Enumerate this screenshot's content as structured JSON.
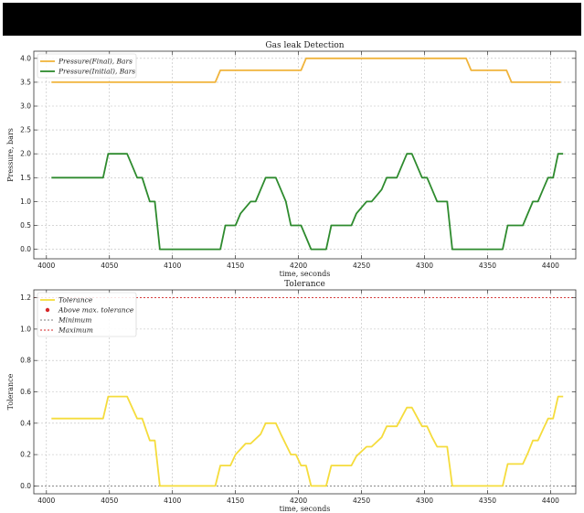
{
  "chart_data": [
    {
      "type": "line",
      "title": "Gas leak Detection",
      "xlabel": "time, seconds",
      "ylabel": "Pressure, bars",
      "xlim": [
        3990,
        4420
      ],
      "ylim": [
        -0.2,
        4.15
      ],
      "xticks": [
        4000,
        4050,
        4100,
        4150,
        4200,
        4250,
        4300,
        4350,
        4400
      ],
      "yticks": [
        0.0,
        0.5,
        1.0,
        1.5,
        2.0,
        2.5,
        3.0,
        3.5,
        4.0
      ],
      "xtick_labels": [
        "4000",
        "4050",
        "4100",
        "4150",
        "4200",
        "4250",
        "4300",
        "4350",
        "4400"
      ],
      "ytick_labels": [
        "0.0",
        "0.5",
        "1.0",
        "1.5",
        "2.0",
        "2.5",
        "3.0",
        "3.5",
        "4.0"
      ],
      "grid": true,
      "legend_position": "top-left",
      "series": [
        {
          "name": "Pressure(Final), Bars",
          "color": "#f0b43c",
          "x": [
            4004,
            4134,
            4138,
            4202,
            4206,
            4333,
            4337,
            4365,
            4369,
            4408
          ],
          "y": [
            3.5,
            3.5,
            3.75,
            3.75,
            4.0,
            4.0,
            3.75,
            3.75,
            3.5,
            3.5
          ]
        },
        {
          "name": "Pressure(Initial), Bars",
          "color": "#2e8b2e",
          "x": [
            4004,
            4045,
            4049,
            4064,
            4068,
            4072,
            4076,
            4079,
            4082,
            4086,
            4090,
            4138,
            4142,
            4150,
            4154,
            4162,
            4166,
            4170,
            4174,
            4182,
            4186,
            4190,
            4194,
            4202,
            4206,
            4210,
            4214,
            4222,
            4226,
            4242,
            4246,
            4254,
            4258,
            4266,
            4270,
            4278,
            4282,
            4286,
            4290,
            4298,
            4302,
            4306,
            4310,
            4318,
            4322,
            4362,
            4366,
            4378,
            4382,
            4386,
            4390,
            4394,
            4398,
            4402,
            4406,
            4410
          ],
          "y": [
            1.5,
            1.5,
            2.0,
            2.0,
            1.75,
            1.5,
            1.5,
            1.25,
            1.0,
            1.0,
            0.0,
            0.0,
            0.5,
            0.5,
            0.75,
            1.0,
            1.0,
            1.25,
            1.5,
            1.5,
            1.25,
            1.0,
            0.5,
            0.5,
            0.25,
            0.0,
            0.0,
            0.0,
            0.5,
            0.5,
            0.75,
            1.0,
            1.0,
            1.25,
            1.5,
            1.5,
            1.75,
            2.0,
            2.0,
            1.5,
            1.5,
            1.25,
            1.0,
            1.0,
            0.0,
            0.0,
            0.5,
            0.5,
            0.75,
            1.0,
            1.0,
            1.25,
            1.5,
            1.5,
            2.0,
            2.0
          ]
        }
      ]
    },
    {
      "type": "line",
      "title": "Tolerance",
      "xlabel": "time, seconds",
      "ylabel": "Tolerance",
      "xlim": [
        3990,
        4420
      ],
      "ylim": [
        -0.05,
        1.25
      ],
      "xticks": [
        4000,
        4050,
        4100,
        4150,
        4200,
        4250,
        4300,
        4350,
        4400
      ],
      "yticks": [
        0.0,
        0.2,
        0.4,
        0.6,
        0.8,
        1.0,
        1.2
      ],
      "xtick_labels": [
        "4000",
        "4050",
        "4100",
        "4150",
        "4200",
        "4250",
        "4300",
        "4350",
        "4400"
      ],
      "ytick_labels": [
        "0.0",
        "0.2",
        "0.4",
        "0.6",
        "0.8",
        "1.0",
        "1.2"
      ],
      "grid": true,
      "legend_position": "top-left",
      "series": [
        {
          "name": "Tolerance",
          "color": "#f5dc3c",
          "x": [
            4004,
            4045,
            4049,
            4064,
            4068,
            4072,
            4076,
            4079,
            4082,
            4086,
            4090,
            4134,
            4138,
            4146,
            4150,
            4158,
            4162,
            4170,
            4174,
            4182,
            4186,
            4194,
            4198,
            4202,
            4206,
            4210,
            4214,
            4222,
            4226,
            4242,
            4246,
            4254,
            4258,
            4266,
            4270,
            4278,
            4282,
            4286,
            4290,
            4298,
            4302,
            4306,
            4310,
            4318,
            4322,
            4362,
            4366,
            4378,
            4382,
            4386,
            4390,
            4394,
            4398,
            4402,
            4406,
            4410
          ],
          "y": [
            0.43,
            0.43,
            0.57,
            0.57,
            0.5,
            0.43,
            0.43,
            0.36,
            0.29,
            0.29,
            0.0,
            0.0,
            0.13,
            0.13,
            0.2,
            0.27,
            0.27,
            0.33,
            0.4,
            0.4,
            0.33,
            0.2,
            0.2,
            0.13,
            0.13,
            0.0,
            0.0,
            0.0,
            0.13,
            0.13,
            0.19,
            0.25,
            0.25,
            0.31,
            0.38,
            0.38,
            0.44,
            0.5,
            0.5,
            0.38,
            0.38,
            0.31,
            0.25,
            0.25,
            0.0,
            0.0,
            0.14,
            0.14,
            0.21,
            0.29,
            0.29,
            0.36,
            0.43,
            0.43,
            0.57,
            0.57
          ]
        },
        {
          "name": "Above max. tolerance",
          "color": "#d62728",
          "marker": "dot",
          "x": [],
          "y": []
        },
        {
          "name": "Minimum",
          "color": "#7f7f7f",
          "style": "dashed",
          "hline": 0.0
        },
        {
          "name": "Maximum",
          "color": "#d62728",
          "style": "dashed",
          "hline": 1.2
        }
      ]
    }
  ]
}
